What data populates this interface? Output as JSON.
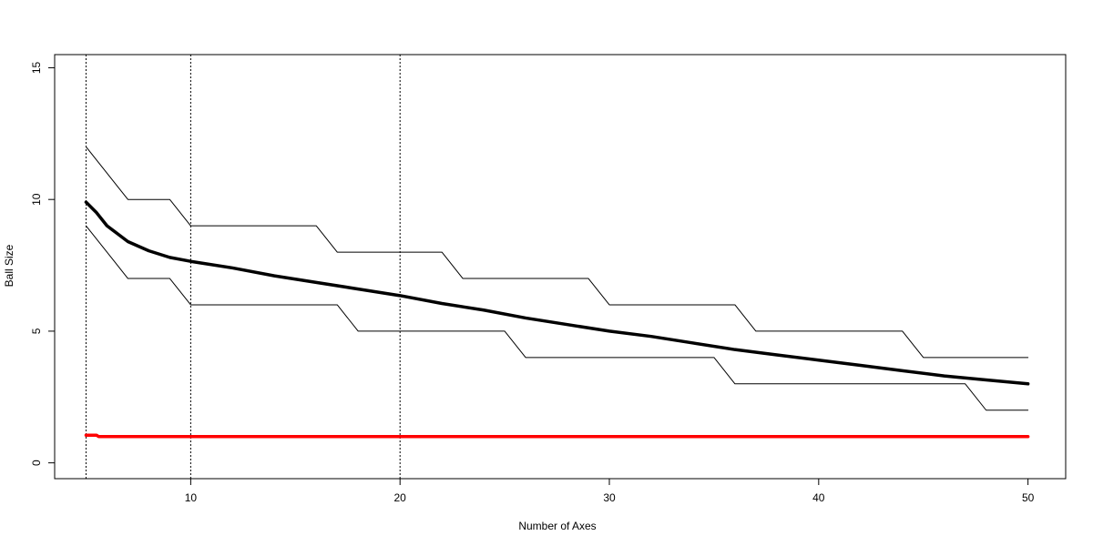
{
  "chart_data": {
    "type": "line",
    "title": "",
    "xlabel": "Number of Axes",
    "ylabel": "Ball Size",
    "xlim": [
      3.5,
      51.8
    ],
    "ylim": [
      -0.6,
      15.5
    ],
    "x_ticks": [
      10,
      20,
      30,
      40,
      50
    ],
    "x_tick_labels": [
      "10",
      "20",
      "30",
      "40",
      "50"
    ],
    "y_ticks": [
      0,
      5,
      10,
      15
    ],
    "y_tick_labels": [
      "0",
      "5",
      "10",
      "15"
    ],
    "grid": false,
    "legend": "none",
    "vlines": [
      5,
      10,
      20
    ],
    "series": [
      {
        "role": "mean",
        "color": "#000000",
        "style": "thick",
        "points": [
          [
            5,
            9.9
          ],
          [
            5.5,
            9.5
          ],
          [
            6,
            9.0
          ],
          [
            7,
            8.4
          ],
          [
            8,
            8.05
          ],
          [
            9,
            7.8
          ],
          [
            10,
            7.65
          ],
          [
            12,
            7.4
          ],
          [
            14,
            7.1
          ],
          [
            16,
            6.85
          ],
          [
            18,
            6.6
          ],
          [
            20,
            6.35
          ],
          [
            22,
            6.05
          ],
          [
            24,
            5.8
          ],
          [
            26,
            5.5
          ],
          [
            28,
            5.25
          ],
          [
            30,
            5.0
          ],
          [
            32,
            4.8
          ],
          [
            34,
            4.55
          ],
          [
            36,
            4.3
          ],
          [
            38,
            4.1
          ],
          [
            40,
            3.9
          ],
          [
            42,
            3.7
          ],
          [
            44,
            3.5
          ],
          [
            46,
            3.3
          ],
          [
            48,
            3.15
          ],
          [
            50,
            3.0
          ]
        ]
      },
      {
        "role": "upper",
        "color": "#000000",
        "style": "thin",
        "points": [
          [
            5,
            12
          ],
          [
            7,
            10
          ],
          [
            9,
            10
          ],
          [
            10,
            9
          ],
          [
            16,
            9
          ],
          [
            17,
            8
          ],
          [
            22,
            8
          ],
          [
            23,
            7
          ],
          [
            29,
            7
          ],
          [
            30,
            6
          ],
          [
            36,
            6
          ],
          [
            37,
            5
          ],
          [
            44,
            5
          ],
          [
            45,
            4
          ],
          [
            50,
            4
          ]
        ]
      },
      {
        "role": "lower",
        "color": "#000000",
        "style": "thin",
        "points": [
          [
            5,
            9
          ],
          [
            7,
            7
          ],
          [
            9,
            7
          ],
          [
            10,
            6
          ],
          [
            17,
            6
          ],
          [
            18,
            5
          ],
          [
            25,
            5
          ],
          [
            26,
            4
          ],
          [
            35,
            4
          ],
          [
            36,
            3
          ],
          [
            47,
            3
          ],
          [
            48,
            2
          ],
          [
            50,
            2
          ]
        ]
      },
      {
        "role": "baseline",
        "color": "#ff0000",
        "style": "thick",
        "points": [
          [
            5,
            1.05
          ],
          [
            5.5,
            1.05
          ],
          [
            5.6,
            1.0
          ],
          [
            50,
            1.0
          ]
        ]
      }
    ]
  }
}
